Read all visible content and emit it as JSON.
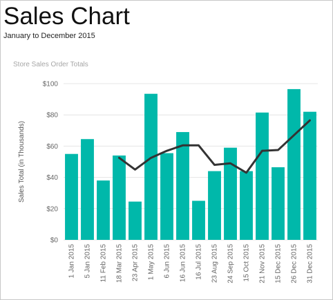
{
  "header": {
    "title": "Sales Chart",
    "subtitle": "January to December 2015"
  },
  "colors": {
    "bar": "#00b8aa",
    "line": "#333333",
    "grid": "#e4e4e4"
  },
  "chart_data": {
    "type": "bar",
    "title": "Store Sales Order Totals",
    "xlabel": "",
    "ylabel": "Sales Total (in Thousands)",
    "ylim": [
      0,
      100
    ],
    "yticks": [
      0,
      20,
      40,
      60,
      80,
      100
    ],
    "ytick_labels": [
      "$0",
      "$20",
      "$40",
      "$60",
      "$80",
      "$100"
    ],
    "grid": true,
    "categories": [
      "1 Jan 2015",
      "5 Jan 2015",
      "11 Feb 2015",
      "18 Mar 2015",
      "23 Apr 2015",
      "1 May 2015",
      "6 Jun 2015",
      "16 Jun 2015",
      "16 Jul 2015",
      "23 Aug 2015",
      "24 Sep 2015",
      "15 Oct 2015",
      "21 Nov 2015",
      "15 Dec 2015",
      "26 Dec 2015",
      "31 Dec 2015"
    ],
    "series": [
      {
        "type": "bar",
        "values": [
          55,
          64.5,
          38,
          54,
          24.5,
          93.5,
          55.5,
          69,
          25,
          44,
          59,
          44,
          81.5,
          46.5,
          96.5,
          82
        ]
      },
      {
        "type": "line",
        "values": [
          null,
          null,
          null,
          52.5,
          45,
          52.5,
          57,
          60.5,
          60.5,
          48,
          49,
          43,
          57,
          57.5,
          67,
          76.5
        ]
      }
    ]
  }
}
